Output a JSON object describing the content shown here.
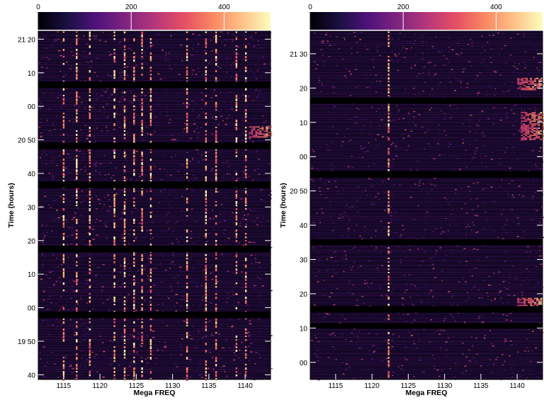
{
  "chart_data": [
    {
      "type": "heatmap",
      "title": "",
      "xlabel": "Mega FREQ",
      "ylabel": "Time (hours)",
      "xlim": [
        1111.5,
        1143.5
      ],
      "x_ticks": [
        1115,
        1120,
        1125,
        1130,
        1135,
        1140
      ],
      "x_tick_labels": [
        "1115",
        "1120",
        "1125",
        "1130",
        "1135",
        "1140"
      ],
      "ylim_minutes": [
        1178.6,
        1282.4
      ],
      "y_ticks_minutes": [
        1180,
        1190,
        1200,
        1210,
        1220,
        1230,
        1240,
        1250,
        1260,
        1270,
        1280
      ],
      "y_tick_labels": [
        "40",
        "19 50",
        "00",
        "10",
        "20",
        "30",
        "40",
        "20 50",
        "00",
        "10",
        "21 20"
      ],
      "colorbar": {
        "colormap": "magma",
        "range": [
          0,
          500
        ],
        "ticks": [
          0,
          200,
          400
        ],
        "tick_labels": [
          "0",
          "200",
          "400"
        ],
        "position": "top"
      },
      "gaps_minutes": [
        [
          1196.8,
          1198.8
        ],
        [
          1216.5,
          1218.5
        ],
        [
          1235.6,
          1237.6
        ],
        [
          1247.2,
          1249.2
        ],
        [
          1265.4,
          1267.4
        ]
      ],
      "bright_channels_mhz": [
        1115.0,
        1116.8,
        1118.6,
        1122.0,
        1123.4,
        1124.7,
        1125.8,
        1127.0,
        1132.0,
        1134.6,
        1136.0,
        1138.8,
        1140.1
      ],
      "bright_patches": [
        {
          "x": [
            1140.5,
            1143.5
          ],
          "t_minutes": [
            1251.0,
            1254.0
          ]
        }
      ]
    },
    {
      "type": "heatmap",
      "title": "",
      "xlabel": "Mega FREQ",
      "ylabel": "Time (hours)",
      "xlim": [
        1111.5,
        1143.5
      ],
      "x_ticks": [
        1115,
        1120,
        1125,
        1130,
        1135,
        1140
      ],
      "x_tick_labels": [
        "1115",
        "1120",
        "1125",
        "1130",
        "1135",
        "1140"
      ],
      "ylim_minutes": [
        1195.0,
        1296.6
      ],
      "y_ticks_minutes": [
        1200,
        1210,
        1220,
        1230,
        1240,
        1250,
        1260,
        1270,
        1280,
        1290
      ],
      "y_tick_labels": [
        "00",
        "10",
        "20",
        "30",
        "40",
        "20 50",
        "00",
        "10",
        "20",
        "21 30"
      ],
      "colorbar": {
        "colormap": "magma",
        "range": [
          0,
          500
        ],
        "ticks": [
          0,
          200,
          400
        ],
        "tick_labels": [
          "0",
          "200",
          "400"
        ],
        "position": "top"
      },
      "gaps_minutes": [
        [
          1209.8,
          1211.4
        ],
        [
          1214.5,
          1216.4
        ],
        [
          1234.2,
          1235.9
        ],
        [
          1253.8,
          1255.8
        ],
        [
          1275.4,
          1277.2
        ]
      ],
      "bright_channels_mhz": [
        1122.3
      ],
      "bright_patches": [
        {
          "x": [
            1140.0,
            1143.5
          ],
          "t_minutes": [
            1215.5,
            1218.8
          ]
        },
        {
          "x": [
            1140.0,
            1143.5
          ],
          "t_minutes": [
            1279.5,
            1283.0
          ]
        },
        {
          "x": [
            1140.5,
            1143.5
          ],
          "t_minutes": [
            1265.0,
            1273.0
          ]
        }
      ]
    }
  ]
}
